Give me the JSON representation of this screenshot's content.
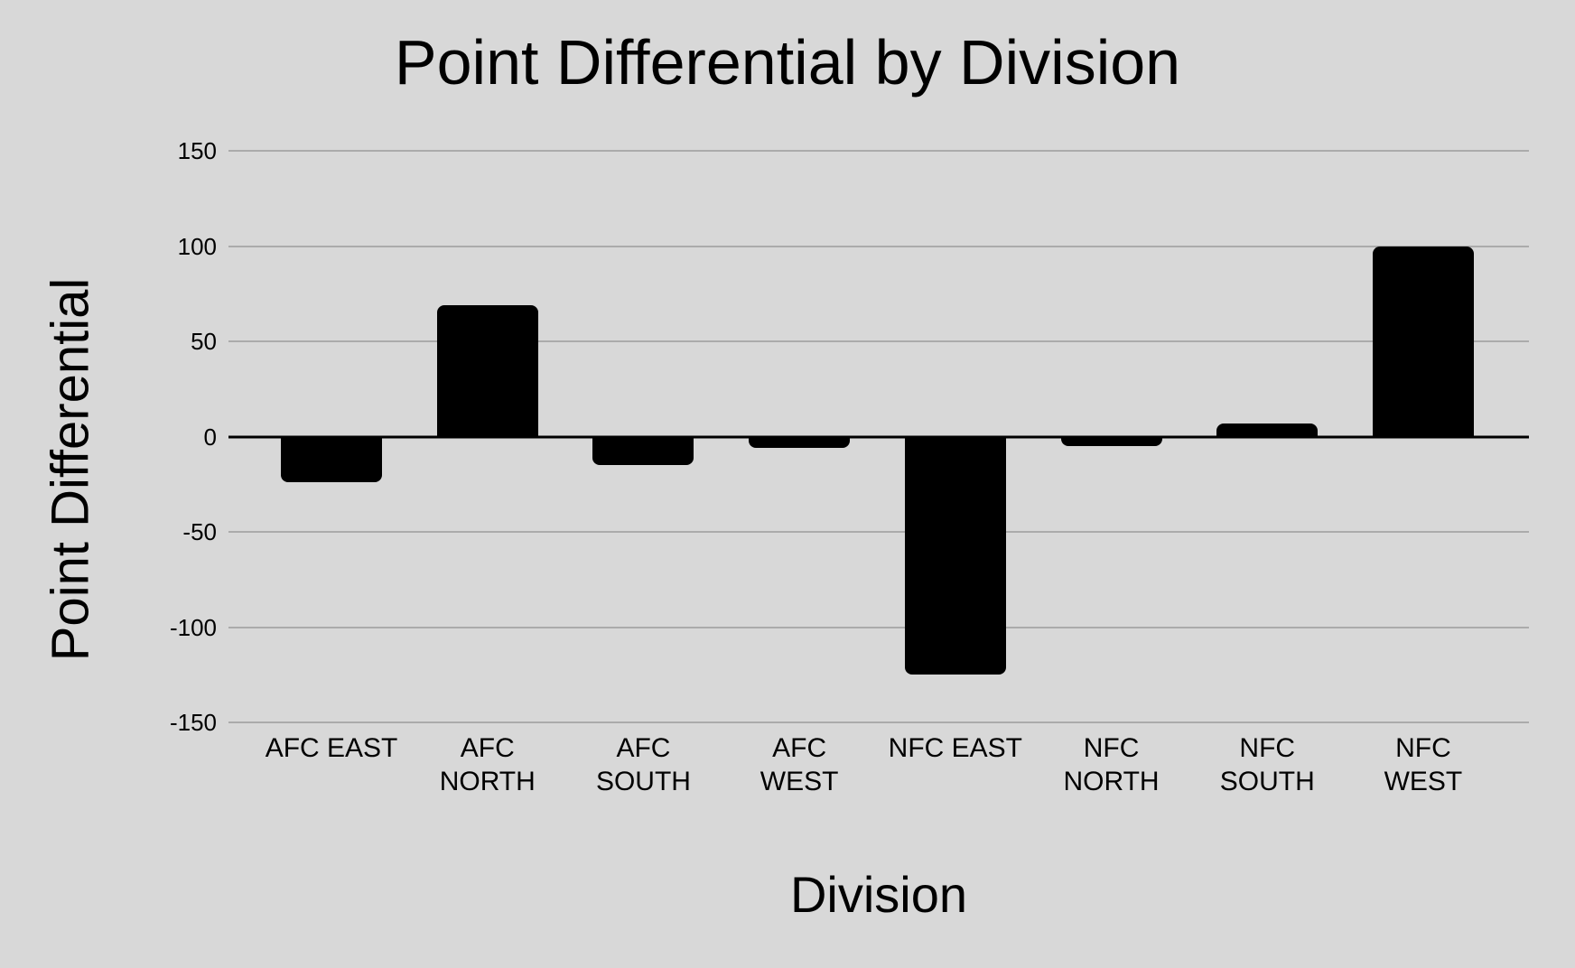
{
  "chart_data": {
    "type": "bar",
    "title": "Point Differential by Division",
    "xlabel": "Division",
    "ylabel": "Point Differential",
    "categories": [
      "AFC EAST",
      "AFC NORTH",
      "AFC SOUTH",
      "AFC WEST",
      "NFC EAST",
      "NFC NORTH",
      "NFC SOUTH",
      "NFC WEST"
    ],
    "category_label_lines": [
      [
        "AFC EAST"
      ],
      [
        "AFC",
        "NORTH"
      ],
      [
        "AFC",
        "SOUTH"
      ],
      [
        "AFC",
        "WEST"
      ],
      [
        "NFC EAST"
      ],
      [
        "NFC",
        "NORTH"
      ],
      [
        "NFC",
        "SOUTH"
      ],
      [
        "NFC",
        "WEST"
      ]
    ],
    "values": [
      -24,
      69,
      -15,
      -6,
      -125,
      -5,
      7,
      100
    ],
    "series": [
      {
        "name": "Point Differential",
        "values": [
          -24,
          69,
          -15,
          -6,
          -125,
          -5,
          7,
          100
        ]
      }
    ],
    "ylim": [
      -150,
      150
    ],
    "yticks": [
      {
        "value": 150,
        "label": "150"
      },
      {
        "value": 100,
        "label": "100"
      },
      {
        "value": 50,
        "label": "50"
      },
      {
        "value": 0,
        "label": "0"
      },
      {
        "value": -50,
        "label": "-50"
      },
      {
        "value": -100,
        "label": "-100"
      },
      {
        "value": -150,
        "label": "-150"
      }
    ],
    "grid": true,
    "legend": "none",
    "colors": {
      "bar": "#000000",
      "background": "#d8d8d8",
      "gridline": "#ababab",
      "zero_line": "#000000",
      "text": "#000000"
    }
  }
}
